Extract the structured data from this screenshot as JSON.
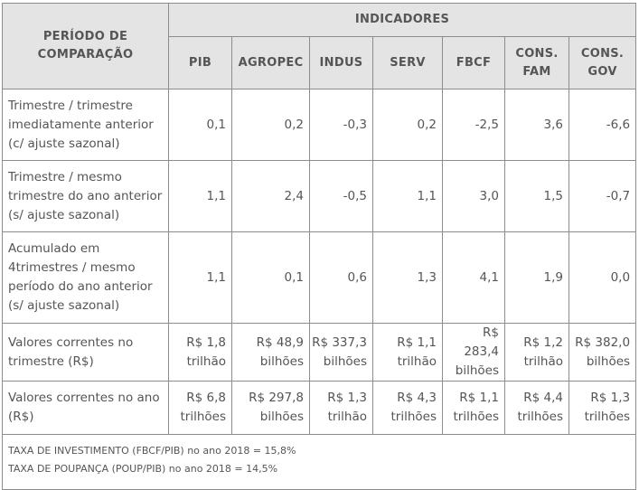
{
  "header": {
    "period": "PERÍODO DE COMPARAÇÃO",
    "indicators": "INDICADORES",
    "columns": [
      "PIB",
      "AGROPEC",
      "INDUS",
      "SERV",
      "FBCF",
      "CONS. FAM",
      "CONS. GOV"
    ]
  },
  "rows": [
    {
      "label": "Trimestre / trimestre imediatamente anterior (c/ ajuste sazonal)",
      "values": [
        "0,1",
        "0,2",
        "-0,3",
        "0,2",
        "-2,5",
        "3,6",
        "-6,6"
      ]
    },
    {
      "label": "Trimestre / mesmo trimestre do ano anterior (s/ ajuste sazonal)",
      "values": [
        "1,1",
        "2,4",
        "-0,5",
        "1,1",
        "3,0",
        "1,5",
        "-0,7"
      ]
    },
    {
      "label": "Acumulado em 4trimestres / mesmo período do ano anterior (s/ ajuste sazonal)",
      "values": [
        "1,1",
        "0,1",
        "0,6",
        "1,3",
        "4,1",
        "1,9",
        "0,0"
      ]
    },
    {
      "label": "Valores correntes no trimestre (R$)",
      "values": [
        "R$ 1,8 trilhão",
        "R$ 48,9 bilhões",
        "R$ 337,3 bilhões",
        "R$ 1,1 trilhão",
        "R$ 283,4 bilhões",
        "R$ 1,2 trilhão",
        "R$ 382,0 bilhões"
      ]
    },
    {
      "label": "Valores correntes no ano (R$)",
      "values": [
        "R$ 6,8 trilhões",
        "R$ 297,8 bilhões",
        "R$ 1,3 trilhão",
        "R$ 4,3 trilhões",
        "R$ 1,1 trilhões",
        "R$ 4,4 trilhões",
        "R$ 1,3 trilhões"
      ]
    }
  ],
  "footnotes": [
    "TAXA DE INVESTIMENTO (FBCF/PIB) no ano 2018 = 15,8%",
    "TAXA DE POUPANÇA (POUP/PIB) no ano 2018 = 14,5%"
  ]
}
